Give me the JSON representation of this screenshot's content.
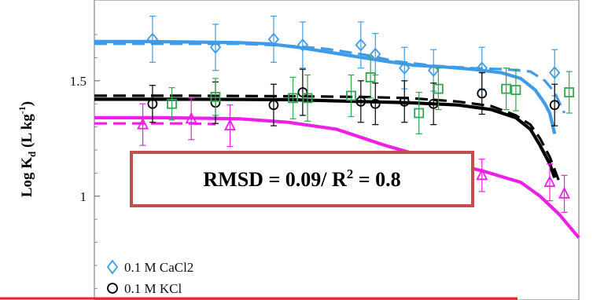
{
  "chart_data": {
    "type": "scatter",
    "xlim": [
      0,
      100
    ],
    "ylim": [
      0.55,
      1.85
    ],
    "yticks": [
      {
        "value": 1.5,
        "label": "1.5"
      },
      {
        "value": 1.0,
        "label": "1"
      }
    ],
    "ylabel": {
      "main": "Log K",
      "sub": "d",
      "mid": " (L kg",
      "sup": "-1",
      "end": ")"
    },
    "legend": [
      {
        "label": "0.1 M CaCl2",
        "marker": "diamond",
        "color": "#3f9be6"
      },
      {
        "label": "0.1 M KCl",
        "marker": "circle",
        "color": "#000000"
      }
    ],
    "annotation": {
      "prefix": "RMSD = 0.09/  R",
      "sup": "2",
      "suffix": " = 0.8",
      "border": "#c0504d"
    },
    "series": [
      {
        "name": "0.1 M CaCl2",
        "marker": "diamond",
        "color": "#3f9be6",
        "points": [
          {
            "x": 12,
            "y": 1.68,
            "err": 0.1
          },
          {
            "x": 25,
            "y": 1.645,
            "err": 0.1
          },
          {
            "x": 37,
            "y": 1.68,
            "err": 0.1
          },
          {
            "x": 43,
            "y": 1.655,
            "err": 0.1
          },
          {
            "x": 55,
            "y": 1.655,
            "err": 0.1
          },
          {
            "x": 58,
            "y": 1.615,
            "err": 0.09
          },
          {
            "x": 64,
            "y": 1.555,
            "err": 0.09
          },
          {
            "x": 70,
            "y": 1.545,
            "err": 0.09
          },
          {
            "x": 80,
            "y": 1.555,
            "err": 0.09
          },
          {
            "x": 95,
            "y": 1.535,
            "err": 0.1
          }
        ],
        "fit": [
          [
            0,
            1.67
          ],
          [
            10,
            1.67
          ],
          [
            20,
            1.668
          ],
          [
            30,
            1.665
          ],
          [
            36,
            1.66
          ],
          [
            42,
            1.645
          ],
          [
            48,
            1.625
          ],
          [
            54,
            1.605
          ],
          [
            60,
            1.585
          ],
          [
            66,
            1.567
          ],
          [
            72,
            1.56
          ],
          [
            78,
            1.55
          ],
          [
            84,
            1.535
          ],
          [
            88,
            1.51
          ],
          [
            91,
            1.46
          ],
          [
            93,
            1.4
          ],
          [
            94,
            1.36
          ],
          [
            95,
            1.27
          ]
        ],
        "fit_dashed": [
          [
            0,
            1.66
          ],
          [
            10,
            1.66
          ],
          [
            20,
            1.66
          ],
          [
            30,
            1.66
          ],
          [
            40,
            1.652
          ],
          [
            48,
            1.638
          ],
          [
            56,
            1.612
          ],
          [
            62,
            1.585
          ],
          [
            70,
            1.565
          ],
          [
            78,
            1.555
          ],
          [
            85,
            1.55
          ],
          [
            90,
            1.54
          ],
          [
            93,
            1.5
          ],
          [
            95,
            1.45
          ],
          [
            97,
            1.36
          ]
        ]
      },
      {
        "name": "0.1 M KCl",
        "marker": "circle",
        "color": "#000000",
        "points": [
          {
            "x": 12,
            "y": 1.4,
            "err": 0.08
          },
          {
            "x": 25,
            "y": 1.405,
            "err": 0.09
          },
          {
            "x": 37,
            "y": 1.395,
            "err": 0.09
          },
          {
            "x": 43,
            "y": 1.45,
            "err": 0.1
          },
          {
            "x": 55,
            "y": 1.41,
            "err": 0.09
          },
          {
            "x": 58,
            "y": 1.4,
            "err": 0.09
          },
          {
            "x": 64,
            "y": 1.41,
            "err": 0.09
          },
          {
            "x": 70,
            "y": 1.4,
            "err": 0.09
          },
          {
            "x": 80,
            "y": 1.445,
            "err": 0.09
          },
          {
            "x": 95,
            "y": 1.395,
            "err": 0.09
          }
        ],
        "fit": [
          [
            0,
            1.42
          ],
          [
            20,
            1.42
          ],
          [
            40,
            1.418
          ],
          [
            55,
            1.41
          ],
          [
            65,
            1.405
          ],
          [
            75,
            1.395
          ],
          [
            82,
            1.375
          ],
          [
            87,
            1.34
          ],
          [
            90,
            1.29
          ],
          [
            92,
            1.22
          ],
          [
            94,
            1.14
          ],
          [
            95,
            1.08
          ]
        ],
        "fit_dashed": [
          [
            0,
            1.435
          ],
          [
            20,
            1.435
          ],
          [
            40,
            1.433
          ],
          [
            55,
            1.43
          ],
          [
            65,
            1.425
          ],
          [
            75,
            1.41
          ],
          [
            82,
            1.39
          ],
          [
            87,
            1.35
          ],
          [
            90,
            1.31
          ],
          [
            92,
            1.25
          ],
          [
            94,
            1.17
          ],
          [
            96,
            1.06
          ]
        ]
      },
      {
        "name": "",
        "marker": "square",
        "color": "#2fa84f",
        "points": [
          {
            "x": 16,
            "y": 1.4,
            "err": 0.07
          },
          {
            "x": 25,
            "y": 1.43,
            "err": 0.08
          },
          {
            "x": 41,
            "y": 1.425,
            "err": 0.09
          },
          {
            "x": 44,
            "y": 1.425,
            "err": 0.1
          },
          {
            "x": 53,
            "y": 1.435,
            "err": 0.09
          },
          {
            "x": 57,
            "y": 1.515,
            "err": 0.09
          },
          {
            "x": 67,
            "y": 1.36,
            "err": 0.09
          },
          {
            "x": 71,
            "y": 1.465,
            "err": 0.09
          },
          {
            "x": 85,
            "y": 1.465,
            "err": 0.09
          },
          {
            "x": 87,
            "y": 1.46,
            "err": 0.09
          },
          {
            "x": 98,
            "y": 1.45,
            "err": 0.09
          }
        ]
      },
      {
        "name": "",
        "marker": "triangle",
        "color": "#ee1fe6",
        "points": [
          {
            "x": 10,
            "y": 1.31,
            "err": 0.09
          },
          {
            "x": 20,
            "y": 1.335,
            "err": 0.09
          },
          {
            "x": 28,
            "y": 1.305,
            "err": 0.09
          },
          {
            "x": 66,
            "y": 1.1,
            "err": 0.07
          },
          {
            "x": 72,
            "y": 1.11,
            "err": 0.08
          },
          {
            "x": 80,
            "y": 1.09,
            "err": 0.07
          },
          {
            "x": 94,
            "y": 1.06,
            "err": 0.08
          },
          {
            "x": 97,
            "y": 1.01,
            "err": 0.08
          }
        ],
        "fit": [
          [
            0,
            1.34
          ],
          [
            15,
            1.34
          ],
          [
            30,
            1.335
          ],
          [
            40,
            1.32
          ],
          [
            50,
            1.29
          ],
          [
            60,
            1.22
          ],
          [
            70,
            1.16
          ],
          [
            80,
            1.11
          ],
          [
            88,
            1.06
          ],
          [
            92,
            1.0
          ],
          [
            96,
            0.92
          ],
          [
            100,
            0.82
          ]
        ],
        "fit_dashed": [
          [
            0,
            1.315
          ],
          [
            10,
            1.315
          ],
          [
            20,
            1.315
          ],
          [
            25,
            1.312
          ]
        ]
      }
    ]
  }
}
